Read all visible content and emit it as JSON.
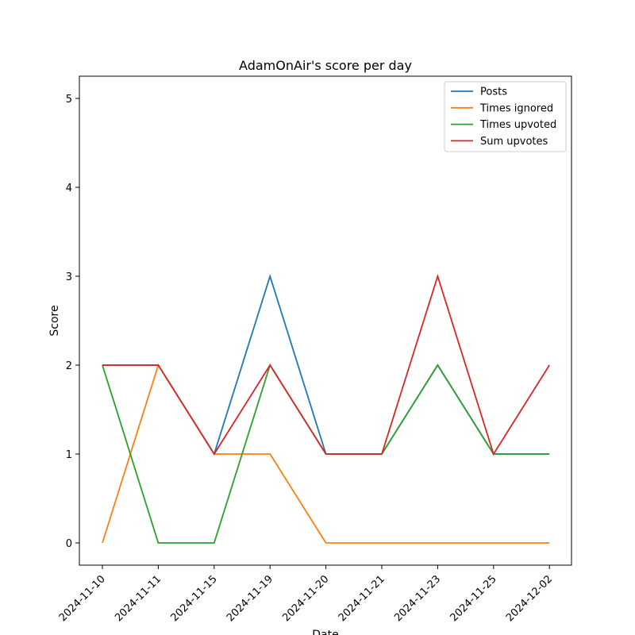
{
  "chart_data": {
    "type": "line",
    "title": "AdamOnAir's score per day",
    "xlabel": "Date",
    "ylabel": "Score",
    "categories": [
      "2024-11-10",
      "2024-11-11",
      "2024-11-15",
      "2024-11-19",
      "2024-11-20",
      "2024-11-21",
      "2024-11-23",
      "2024-11-25",
      "2024-12-02"
    ],
    "yticks": [
      "0",
      "1",
      "2",
      "3",
      "4",
      "5"
    ],
    "ylim": [
      -0.25,
      5.25
    ],
    "grid": false,
    "legend_position": "top-right",
    "series": [
      {
        "name": "Posts",
        "color": "#1f77b4",
        "values": [
          2,
          2,
          1,
          3,
          1,
          1,
          2,
          1,
          1
        ]
      },
      {
        "name": "Times ignored",
        "color": "#ff7f0e",
        "values": [
          0,
          2,
          1,
          1,
          0,
          0,
          0,
          0,
          0
        ]
      },
      {
        "name": "Times upvoted",
        "color": "#2ca02c",
        "values": [
          2,
          0,
          0,
          2,
          1,
          1,
          2,
          1,
          1
        ]
      },
      {
        "name": "Sum upvotes",
        "color": "#d62728",
        "values": [
          2,
          2,
          1,
          2,
          1,
          1,
          3,
          1,
          2
        ]
      }
    ]
  }
}
